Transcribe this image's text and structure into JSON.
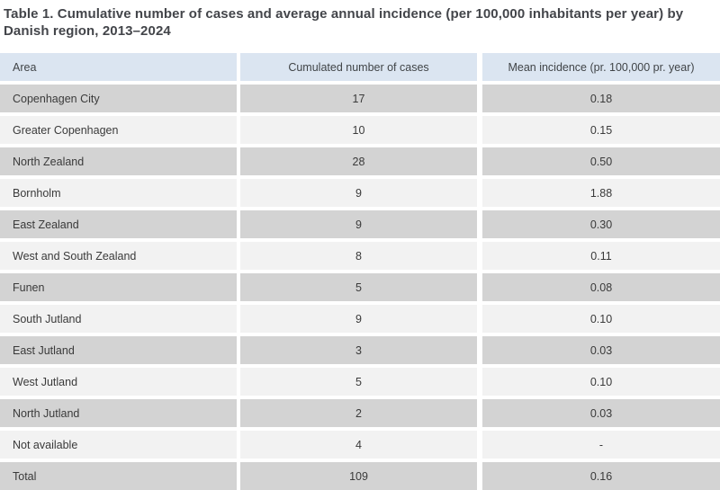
{
  "title": "Table 1. Cumulative number of cases and average annual incidence (per 100,000 inhabitants per year) by Danish region, 2013–2024",
  "table": {
    "columns": [
      "Area",
      "Cumulated number of cases",
      "Mean incidence (pr. 100,000 pr. year)"
    ],
    "rows": [
      {
        "area": "Copenhagen City",
        "cases": "17",
        "incidence": "0.18"
      },
      {
        "area": "Greater Copenhagen",
        "cases": "10",
        "incidence": "0.15"
      },
      {
        "area": "North Zealand",
        "cases": "28",
        "incidence": "0.50"
      },
      {
        "area": "Bornholm",
        "cases": "9",
        "incidence": "1.88"
      },
      {
        "area": "East Zealand",
        "cases": "9",
        "incidence": "0.30"
      },
      {
        "area": "West and South Zealand",
        "cases": "8",
        "incidence": "0.11"
      },
      {
        "area": "Funen",
        "cases": "5",
        "incidence": "0.08"
      },
      {
        "area": "South Jutland",
        "cases": "9",
        "incidence": "0.10"
      },
      {
        "area": "East Jutland",
        "cases": "3",
        "incidence": "0.03"
      },
      {
        "area": "West Jutland",
        "cases": "5",
        "incidence": "0.10"
      },
      {
        "area": "North Jutland",
        "cases": "2",
        "incidence": "0.03"
      },
      {
        "area": "Not available",
        "cases": "4",
        "incidence": "-"
      },
      {
        "area": "Total",
        "cases": "109",
        "incidence": "0.16"
      }
    ]
  },
  "colors": {
    "header_bg": "#dbe5f1",
    "header_text": "#404447",
    "row_dark": "#d3d3d3",
    "row_light": "#f2f2f2",
    "title_text": "#43454a",
    "cell_text": "#3a3a3a"
  }
}
